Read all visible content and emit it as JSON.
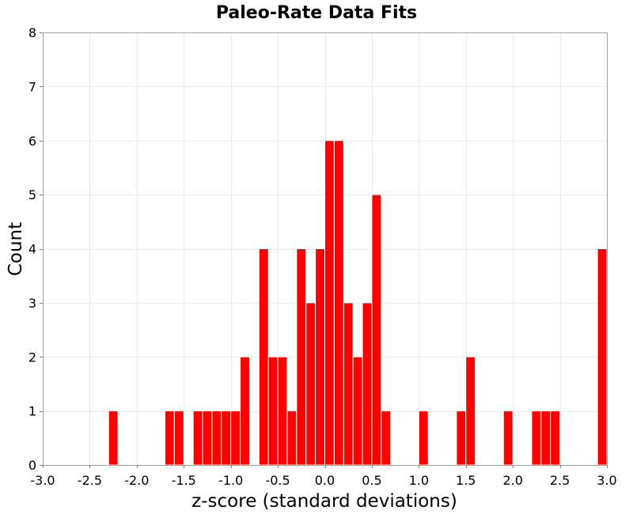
{
  "chart_data": {
    "type": "bar",
    "title": "Paleo-Rate Data Fits",
    "xlabel": "z-score (standard deviations)",
    "ylabel": "Count",
    "xlim": [
      -3.0,
      3.0
    ],
    "ylim": [
      0,
      8
    ],
    "x_ticks": [
      "-3.0",
      "-2.5",
      "-2.0",
      "-1.5",
      "-1.0",
      "-0.5",
      "0.0",
      "0.5",
      "1.0",
      "1.5",
      "2.0",
      "2.5",
      "3.0"
    ],
    "y_ticks": [
      "0",
      "1",
      "2",
      "3",
      "4",
      "5",
      "6",
      "7",
      "8"
    ],
    "grid": true,
    "bin_width": 0.1,
    "color": "#ff0000",
    "bins": [
      {
        "start": -2.3,
        "end": -2.2,
        "count": 1
      },
      {
        "start": -1.7,
        "end": -1.6,
        "count": 1
      },
      {
        "start": -1.6,
        "end": -1.5,
        "count": 1
      },
      {
        "start": -1.4,
        "end": -1.3,
        "count": 1
      },
      {
        "start": -1.3,
        "end": -1.2,
        "count": 1
      },
      {
        "start": -1.2,
        "end": -1.1,
        "count": 1
      },
      {
        "start": -1.1,
        "end": -1.0,
        "count": 1
      },
      {
        "start": -1.0,
        "end": -0.9,
        "count": 1
      },
      {
        "start": -0.9,
        "end": -0.8,
        "count": 2
      },
      {
        "start": -0.7,
        "end": -0.6,
        "count": 4
      },
      {
        "start": -0.6,
        "end": -0.5,
        "count": 2
      },
      {
        "start": -0.5,
        "end": -0.4,
        "count": 2
      },
      {
        "start": -0.4,
        "end": -0.3,
        "count": 1
      },
      {
        "start": -0.3,
        "end": -0.2,
        "count": 4
      },
      {
        "start": -0.2,
        "end": -0.1,
        "count": 3
      },
      {
        "start": -0.1,
        "end": 0.0,
        "count": 4
      },
      {
        "start": 0.0,
        "end": 0.1,
        "count": 6
      },
      {
        "start": 0.1,
        "end": 0.2,
        "count": 6
      },
      {
        "start": 0.2,
        "end": 0.3,
        "count": 3
      },
      {
        "start": 0.3,
        "end": 0.4,
        "count": 2
      },
      {
        "start": 0.4,
        "end": 0.5,
        "count": 3
      },
      {
        "start": 0.5,
        "end": 0.6,
        "count": 5
      },
      {
        "start": 0.6,
        "end": 0.7,
        "count": 1
      },
      {
        "start": 1.0,
        "end": 1.1,
        "count": 1
      },
      {
        "start": 1.4,
        "end": 1.5,
        "count": 1
      },
      {
        "start": 1.5,
        "end": 1.6,
        "count": 2
      },
      {
        "start": 1.9,
        "end": 2.0,
        "count": 1
      },
      {
        "start": 2.2,
        "end": 2.3,
        "count": 1
      },
      {
        "start": 2.3,
        "end": 2.4,
        "count": 1
      },
      {
        "start": 2.4,
        "end": 2.5,
        "count": 1
      },
      {
        "start": 2.9,
        "end": 3.0,
        "count": 4
      }
    ]
  }
}
